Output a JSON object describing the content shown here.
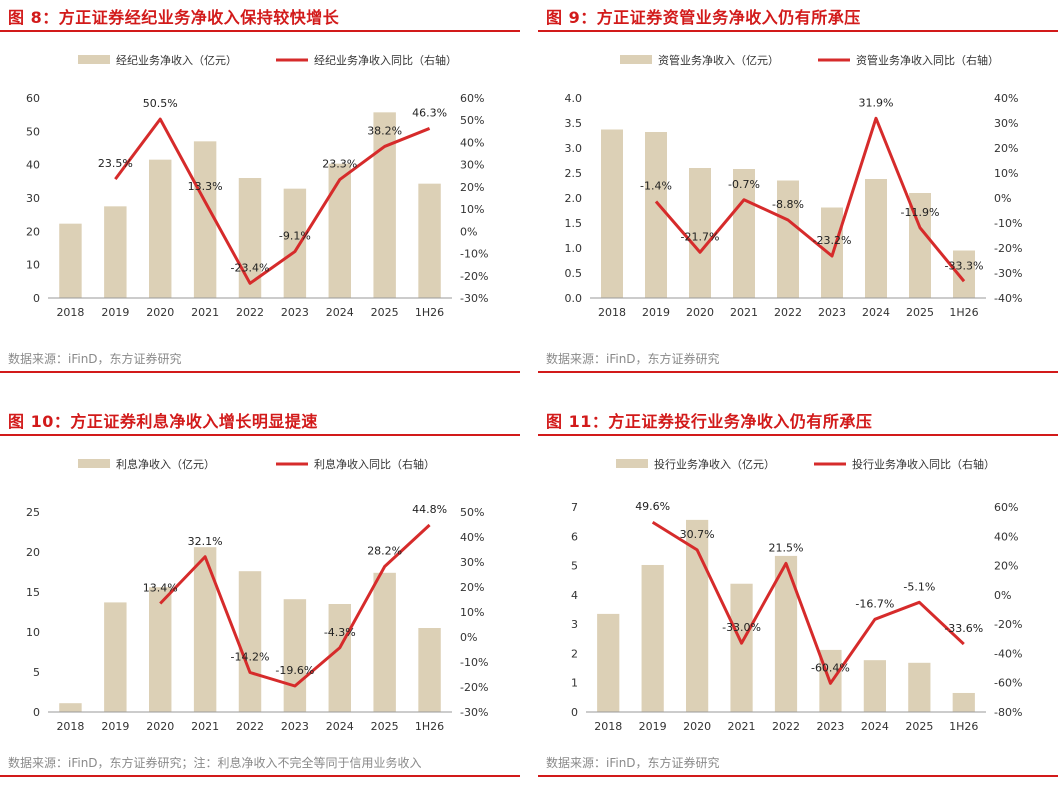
{
  "colors": {
    "bar": "#dcd0b6",
    "line": "#d62b2b",
    "accent": "#d21a1a",
    "axis": "#444444"
  },
  "panels": [
    {
      "title": "图 8：方正证券经纪业务净收入保持较快增长",
      "source": "数据来源：iFinD，东方证券研究"
    },
    {
      "title": "图 9：方正证券资管业务净收入仍有所承压",
      "source": "数据来源：iFinD，东方证券研究"
    },
    {
      "title": "图 10：方正证券利息净收入增长明显提速",
      "source": "数据来源：iFinD，东方证券研究；注：利息净收入不完全等同于信用业务收入"
    },
    {
      "title": "图 11：方正证券投行业务净收入仍有所承压",
      "source": "数据来源：iFinD，东方证券研究"
    }
  ],
  "chart_data": [
    {
      "type": "bar",
      "categories": [
        "2018",
        "2019",
        "2020",
        "2021",
        "2022",
        "2023",
        "2024",
        "2025",
        "1H26"
      ],
      "series": [
        {
          "name": "经纪业务净收入（亿元）",
          "type": "bar",
          "axis": "left",
          "values": [
            22.3,
            27.5,
            41.5,
            47.0,
            36.0,
            32.8,
            40.3,
            55.7,
            34.3
          ]
        },
        {
          "name": "经纪业务净收入同比（右轴）",
          "type": "line",
          "axis": "right",
          "values": [
            null,
            23.5,
            50.5,
            13.3,
            -23.4,
            -9.1,
            23.3,
            38.2,
            46.3
          ],
          "labels": [
            "",
            "23.5%",
            "50.5%",
            "13.3%",
            "-23.4%",
            "-9.1%",
            "23.3%",
            "38.2%",
            "46.3%"
          ]
        }
      ],
      "ylim": [
        0,
        60
      ],
      "yticks": [
        "0",
        "10",
        "20",
        "30",
        "40",
        "50",
        "60"
      ],
      "y2lim": [
        -30,
        60
      ],
      "y2ticks": [
        "-30%",
        "-20%",
        "-10%",
        "0%",
        "10%",
        "20%",
        "30%",
        "40%",
        "50%",
        "60%"
      ],
      "legend": "top"
    },
    {
      "type": "bar",
      "categories": [
        "2018",
        "2019",
        "2020",
        "2021",
        "2022",
        "2023",
        "2024",
        "2025",
        "1H26"
      ],
      "series": [
        {
          "name": "资管业务净收入（亿元）",
          "type": "bar",
          "axis": "left",
          "values": [
            3.37,
            3.32,
            2.6,
            2.58,
            2.35,
            1.81,
            2.38,
            2.1,
            0.95
          ]
        },
        {
          "name": "资管业务净收入同比（右轴）",
          "type": "line",
          "axis": "right",
          "values": [
            null,
            -1.4,
            -21.7,
            -0.7,
            -8.8,
            -23.2,
            31.9,
            -11.9,
            -33.3
          ],
          "labels": [
            "",
            "-1.4%",
            "-21.7%",
            "-0.7%",
            "-8.8%",
            "-23.2%",
            "31.9%",
            "-11.9%",
            "-33.3%"
          ]
        }
      ],
      "ylim": [
        0,
        4.0
      ],
      "yticks": [
        "0.0",
        "0.5",
        "1.0",
        "1.5",
        "2.0",
        "2.5",
        "3.0",
        "3.5",
        "4.0"
      ],
      "y2lim": [
        -40,
        40
      ],
      "y2ticks": [
        "-40%",
        "-30%",
        "-20%",
        "-10%",
        "0%",
        "10%",
        "20%",
        "30%",
        "40%"
      ],
      "legend": "top"
    },
    {
      "type": "bar",
      "categories": [
        "2018",
        "2019",
        "2020",
        "2021",
        "2022",
        "2023",
        "2024",
        "2025",
        "1H26"
      ],
      "series": [
        {
          "name": "利息净收入（亿元）",
          "type": "bar",
          "axis": "left",
          "values": [
            1.1,
            13.7,
            15.6,
            20.6,
            17.6,
            14.1,
            13.5,
            17.4,
            10.5
          ]
        },
        {
          "name": "利息净收入同比（右轴）",
          "type": "line",
          "axis": "right",
          "values": [
            null,
            null,
            13.4,
            32.1,
            -14.2,
            -19.6,
            -4.3,
            28.2,
            44.8
          ],
          "labels": [
            "",
            "",
            "13.4%",
            "32.1%",
            "-14.2%",
            "-19.6%",
            "-4.3%",
            "28.2%",
            "44.8%"
          ]
        }
      ],
      "ylim": [
        0,
        25
      ],
      "yticks": [
        "0",
        "5",
        "10",
        "15",
        "20",
        "25"
      ],
      "y2lim": [
        -30,
        50
      ],
      "y2ticks": [
        "-30%",
        "-20%",
        "-10%",
        "0%",
        "10%",
        "20%",
        "30%",
        "40%",
        "50%"
      ],
      "legend": "top"
    },
    {
      "type": "bar",
      "categories": [
        "2018",
        "2019",
        "2020",
        "2021",
        "2022",
        "2023",
        "2024",
        "2025",
        "1H26"
      ],
      "series": [
        {
          "name": "投行业务净收入（亿元）",
          "type": "bar",
          "axis": "left",
          "values": [
            3.35,
            5.02,
            6.56,
            4.38,
            5.33,
            2.12,
            1.77,
            1.68,
            0.65
          ]
        },
        {
          "name": "投行业务净收入同比（右轴）",
          "type": "line",
          "axis": "right",
          "values": [
            null,
            49.6,
            30.7,
            -33.0,
            21.5,
            -60.4,
            -16.7,
            -5.1,
            -33.6
          ],
          "labels": [
            "",
            "49.6%",
            "30.7%",
            "-33.0%",
            "21.5%",
            "-60.4%",
            "-16.7%",
            "-5.1%",
            "-33.6%"
          ]
        }
      ],
      "ylim": [
        0,
        7
      ],
      "yticks": [
        "0",
        "1",
        "2",
        "3",
        "4",
        "5",
        "6",
        "7"
      ],
      "y2lim": [
        -80,
        60
      ],
      "y2ticks": [
        "-80%",
        "-60%",
        "-40%",
        "-20%",
        "0%",
        "20%",
        "40%",
        "60%"
      ],
      "legend": "top"
    }
  ]
}
